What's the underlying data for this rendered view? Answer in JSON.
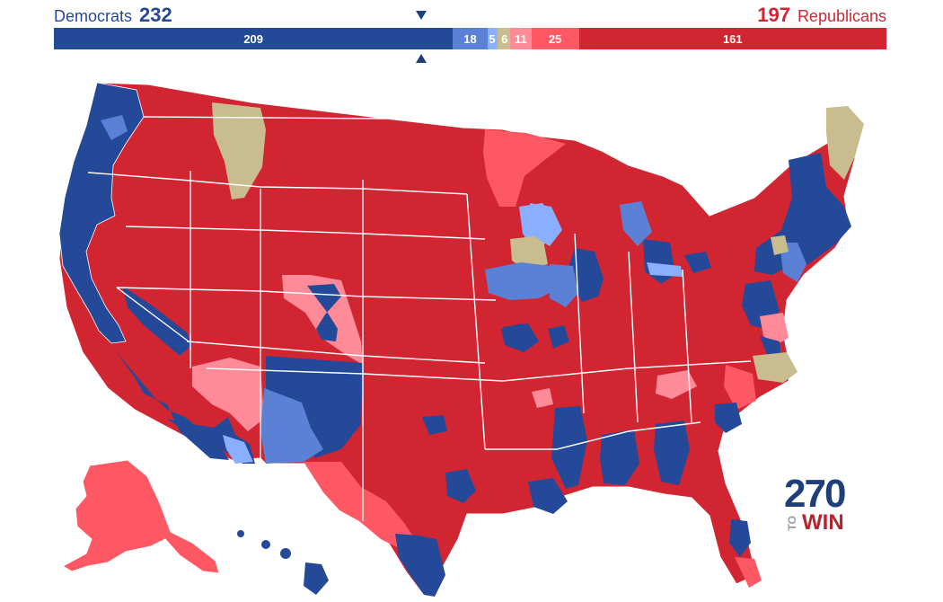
{
  "header": {
    "democrats": {
      "name": "Democrats",
      "count": "232"
    },
    "republicans": {
      "name": "Republicans",
      "count": "197"
    }
  },
  "seat_bar": {
    "segments": [
      {
        "label": "209",
        "seats": 209,
        "color": "#244999"
      },
      {
        "label": "18",
        "seats": 18,
        "color": "#5b81d6"
      },
      {
        "label": "5",
        "seats": 5,
        "color": "#8aafff"
      },
      {
        "label": "",
        "seats": 1,
        "color": "#c2b77f"
      },
      {
        "label": "6",
        "seats": 6,
        "color": "#c9bd8f"
      },
      {
        "label": "11",
        "seats": 11,
        "color": "#ff8b98"
      },
      {
        "label": "25",
        "seats": 25,
        "color": "#ff5865"
      },
      {
        "label": "161",
        "seats": 161,
        "color": "#d22532"
      }
    ]
  },
  "colors": {
    "safe_dem": "#244999",
    "likely_dem": "#5b81d6",
    "lean_dem": "#8aafff",
    "tossup": "#c9bd8f",
    "lean_rep": "#ff8b98",
    "likely_rep": "#ff5865",
    "safe_rep": "#d22532"
  },
  "logo": {
    "number": "270",
    "to": "TO",
    "win": "WIN"
  }
}
